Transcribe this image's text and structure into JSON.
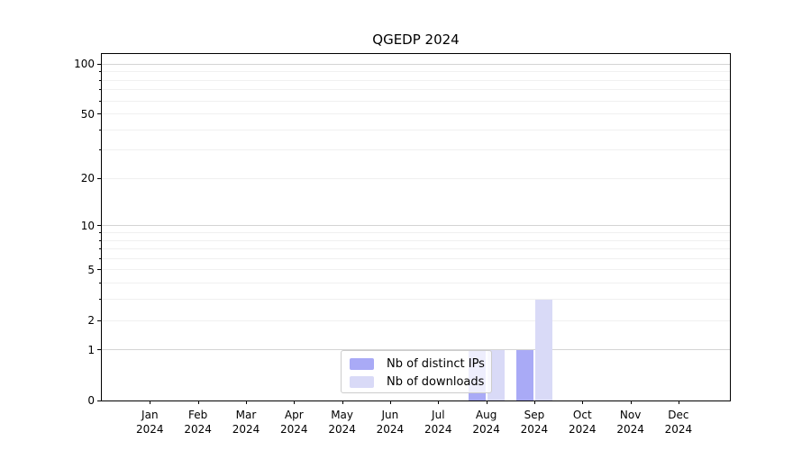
{
  "title": "QGEDP 2024",
  "chart_data": {
    "type": "bar",
    "title": "QGEDP 2024",
    "categories": [
      "Jan",
      "Feb",
      "Mar",
      "Apr",
      "May",
      "Jun",
      "Jul",
      "Aug",
      "Sep",
      "Oct",
      "Nov",
      "Dec"
    ],
    "year_label": "2024",
    "series": [
      {
        "name": "Nb of distinct IPs",
        "color": "#a9aaf6",
        "values": [
          0,
          0,
          0,
          0,
          0,
          0,
          0,
          1,
          1,
          0,
          0,
          0
        ]
      },
      {
        "name": "Nb of downloads",
        "color": "#d9daf7",
        "values": [
          0,
          0,
          0,
          0,
          0,
          0,
          0,
          1,
          3,
          0,
          0,
          0
        ]
      }
    ],
    "y_axis": {
      "tick_values": [
        0,
        1,
        2,
        5,
        10,
        20,
        50,
        100
      ],
      "major_grid": [
        1,
        10,
        100
      ],
      "minor_grid": [
        2,
        3,
        4,
        5,
        6,
        7,
        8,
        9,
        20,
        30,
        40,
        50,
        60,
        70,
        80,
        90
      ],
      "scale": "log1p",
      "ylim": [
        0,
        115
      ]
    },
    "xlabel": "",
    "ylabel": "",
    "grid": true,
    "legend_position": "lower center"
  },
  "colors": {
    "major_grid": "#d4d4d4",
    "minor_grid": "#f0f0f0",
    "spine": "#000000",
    "background": "#ffffff"
  }
}
